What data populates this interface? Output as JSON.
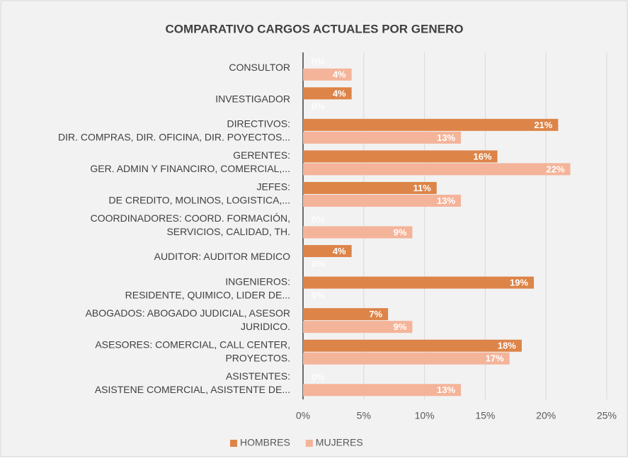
{
  "chart_data": {
    "type": "bar",
    "orientation": "horizontal",
    "title": "COMPARATIVO CARGOS ACTUALES POR GENERO",
    "categories": [
      [
        "CONSULTOR"
      ],
      [
        "INVESTIGADOR"
      ],
      [
        "DIRECTIVOS:",
        "DIR. COMPRAS, DIR. OFICINA, DIR. POYECTOS..."
      ],
      [
        "GERENTES:",
        "GER. ADMIN Y FINANCIRO, COMERCIAL,..."
      ],
      [
        "JEFES:",
        "DE CREDITO, MOLINOS, LOGISTICA,..."
      ],
      [
        "COORDINADORES: COORD. FORMACIÓN,",
        "SERVICIOS, CALIDAD, TH."
      ],
      [
        "AUDITOR: AUDITOR MEDICO"
      ],
      [
        "INGENIEROS:",
        "RESIDENTE, QUIMICO, LIDER DE..."
      ],
      [
        "ABOGADOS: ABOGADO JUDICIAL, ASESOR",
        "JURIDICO."
      ],
      [
        "ASESORES: COMERCIAL, CALL CENTER,",
        "PROYECTOS."
      ],
      [
        "ASISTENTES:",
        "ASISTENE COMERCIAL, ASISTENTE DE..."
      ]
    ],
    "series": [
      {
        "name": "HOMBRES",
        "color": "#dd8449",
        "values": [
          0,
          4,
          21,
          16,
          11,
          0,
          4,
          19,
          7,
          18,
          0
        ],
        "value_labels": [
          "0%",
          "4%",
          "21%",
          "16%",
          "11%",
          "0%",
          "4%",
          "19%",
          "7%",
          "18%",
          "0%"
        ]
      },
      {
        "name": "MUJERES",
        "color": "#f4b49a",
        "values": [
          4,
          0,
          13,
          22,
          13,
          9,
          0,
          0,
          9,
          17,
          13
        ],
        "value_labels": [
          "4%",
          "0%",
          "13%",
          "22%",
          "13%",
          "9%",
          "0%",
          "0%",
          "9%",
          "17%",
          "13%"
        ]
      }
    ],
    "xlim": [
      0,
      25
    ],
    "xticks": [
      {
        "value": 0,
        "label": "0%"
      },
      {
        "value": 5,
        "label": "5%"
      },
      {
        "value": 10,
        "label": "10%"
      },
      {
        "value": 15,
        "label": "15%"
      },
      {
        "value": 20,
        "label": "20%"
      },
      {
        "value": 25,
        "label": "25%"
      }
    ],
    "grid": true,
    "legend": "bottom"
  }
}
